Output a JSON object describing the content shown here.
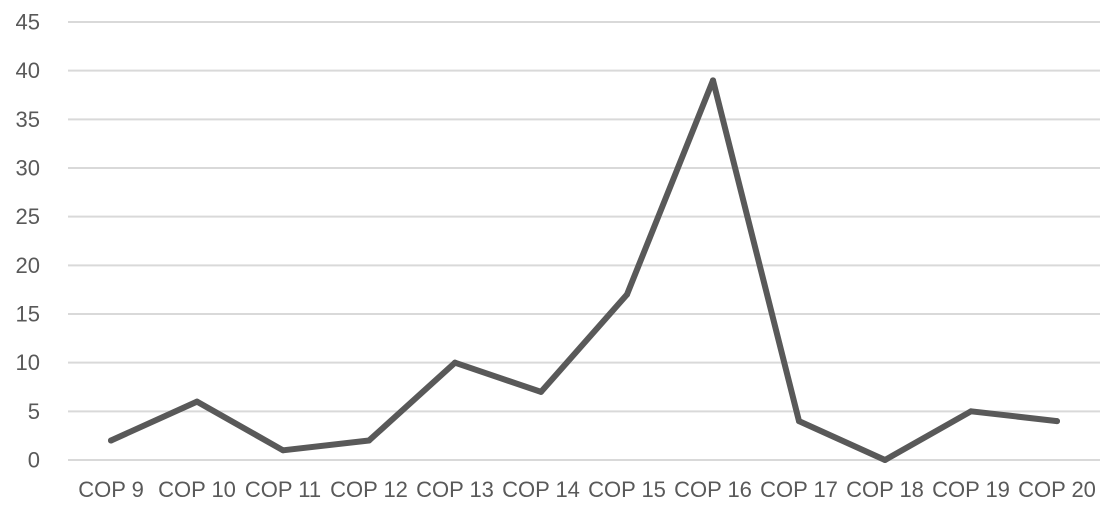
{
  "chart_data": {
    "type": "line",
    "title": "",
    "xlabel": "",
    "ylabel": "",
    "categories": [
      "COP 9",
      "COP 10",
      "COP 11",
      "COP 12",
      "COP 13",
      "COP 14",
      "COP 15",
      "COP 16",
      "COP 17",
      "COP 18",
      "COP 19",
      "COP 20"
    ],
    "series": [
      {
        "values": [
          2,
          6,
          1,
          2,
          10,
          7,
          17,
          39,
          4,
          0,
          5,
          4
        ],
        "color": "#595959"
      }
    ],
    "ylim": [
      0,
      45
    ],
    "yticks": [
      0,
      5,
      10,
      15,
      20,
      25,
      30,
      35,
      40,
      45
    ],
    "grid": true,
    "legend": "none"
  }
}
